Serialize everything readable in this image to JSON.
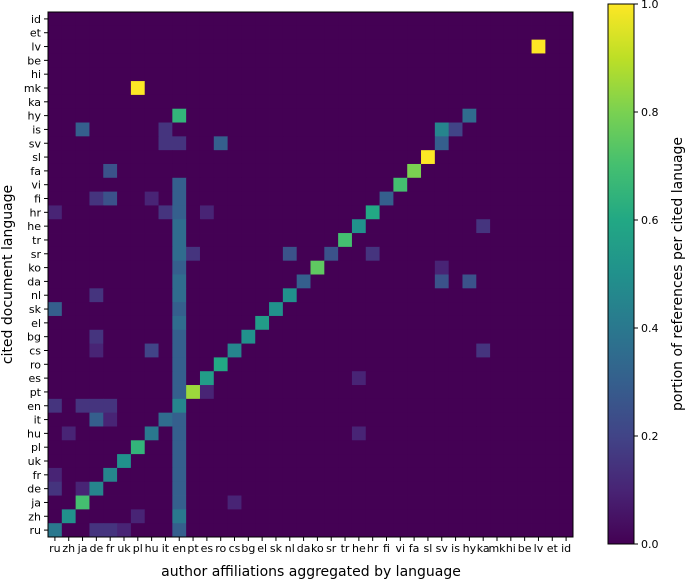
{
  "chart_data": {
    "type": "heatmap",
    "title": "",
    "xlabel": "author affiliations aggregated by language",
    "ylabel": "cited document language",
    "x_categories": [
      "ru",
      "zh",
      "ja",
      "de",
      "fr",
      "uk",
      "pl",
      "hu",
      "it",
      "en",
      "pt",
      "es",
      "ro",
      "cs",
      "bg",
      "el",
      "sk",
      "nl",
      "da",
      "ko",
      "sr",
      "tr",
      "he",
      "hr",
      "fi",
      "vi",
      "fa",
      "sl",
      "sv",
      "is",
      "hy",
      "ka",
      "mk",
      "hi",
      "be",
      "lv",
      "et",
      "id"
    ],
    "y_categories_top_to_bottom": [
      "id",
      "et",
      "lv",
      "be",
      "hi",
      "mk",
      "ka",
      "hy",
      "is",
      "sv",
      "sl",
      "fa",
      "vi",
      "fi",
      "hr",
      "he",
      "tr",
      "sr",
      "ko",
      "da",
      "nl",
      "sk",
      "el",
      "bg",
      "cs",
      "ro",
      "es",
      "pt",
      "en",
      "it",
      "hu",
      "pl",
      "uk",
      "fr",
      "de",
      "ja",
      "zh",
      "ru"
    ],
    "colorbar": {
      "label": "portion of references per cited lanuage",
      "range": [
        0.0,
        1.0
      ],
      "ticks": [
        "0.0",
        "0.2",
        "0.4",
        "0.6",
        "0.8",
        "1.0"
      ],
      "colormap": "viridis"
    },
    "base_value": 0.0,
    "cells": [
      {
        "y": "ru",
        "x": "ru",
        "v": 0.4
      },
      {
        "y": "zh",
        "x": "zh",
        "v": 0.5
      },
      {
        "y": "ja",
        "x": "ja",
        "v": 0.7
      },
      {
        "y": "de",
        "x": "de",
        "v": 0.45
      },
      {
        "y": "fr",
        "x": "fr",
        "v": 0.45
      },
      {
        "y": "uk",
        "x": "uk",
        "v": 0.5
      },
      {
        "y": "pl",
        "x": "pl",
        "v": 0.65
      },
      {
        "y": "hu",
        "x": "hu",
        "v": 0.4
      },
      {
        "y": "it",
        "x": "it",
        "v": 0.35
      },
      {
        "y": "en",
        "x": "en",
        "v": 0.45
      },
      {
        "y": "pt",
        "x": "pt",
        "v": 0.85
      },
      {
        "y": "es",
        "x": "es",
        "v": 0.55
      },
      {
        "y": "ro",
        "x": "ro",
        "v": 0.6
      },
      {
        "y": "cs",
        "x": "cs",
        "v": 0.45
      },
      {
        "y": "bg",
        "x": "bg",
        "v": 0.5
      },
      {
        "y": "el",
        "x": "el",
        "v": 0.55
      },
      {
        "y": "sk",
        "x": "sk",
        "v": 0.5
      },
      {
        "y": "nl",
        "x": "nl",
        "v": 0.5
      },
      {
        "y": "da",
        "x": "da",
        "v": 0.3
      },
      {
        "y": "ko",
        "x": "ko",
        "v": 0.75
      },
      {
        "y": "sr",
        "x": "sr",
        "v": 0.25
      },
      {
        "y": "tr",
        "x": "tr",
        "v": 0.7
      },
      {
        "y": "he",
        "x": "he",
        "v": 0.5
      },
      {
        "y": "hr",
        "x": "hr",
        "v": 0.6
      },
      {
        "y": "fi",
        "x": "fi",
        "v": 0.3
      },
      {
        "y": "vi",
        "x": "vi",
        "v": 0.7
      },
      {
        "y": "fa",
        "x": "fa",
        "v": 0.8
      },
      {
        "y": "sl",
        "x": "sl",
        "v": 1.0
      },
      {
        "y": "sv",
        "x": "sv",
        "v": 0.3
      },
      {
        "y": "is",
        "x": "sv",
        "v": 0.45
      },
      {
        "y": "hy",
        "x": "en",
        "v": 0.65
      },
      {
        "y": "hy",
        "x": "hy",
        "v": 0.35
      },
      {
        "y": "mk",
        "x": "pl",
        "v": 1.0
      },
      {
        "y": "lv",
        "x": "lv",
        "v": 1.0
      },
      {
        "y": "is",
        "x": "ja",
        "v": 0.3
      },
      {
        "y": "is",
        "x": "is",
        "v": 0.2
      },
      {
        "y": "is",
        "x": "it",
        "v": 0.15
      },
      {
        "y": "sv",
        "x": "it",
        "v": 0.15
      },
      {
        "y": "sv",
        "x": "en",
        "v": 0.15
      },
      {
        "y": "sv",
        "x": "ro",
        "v": 0.3
      },
      {
        "y": "fa",
        "x": "fr",
        "v": 0.25
      },
      {
        "y": "fi",
        "x": "fr",
        "v": 0.25
      },
      {
        "y": "fi",
        "x": "de",
        "v": 0.15
      },
      {
        "y": "hr",
        "x": "it",
        "v": 0.15
      },
      {
        "y": "hr",
        "x": "ru",
        "v": 0.1
      },
      {
        "y": "hr",
        "x": "es",
        "v": 0.1
      },
      {
        "y": "sr",
        "x": "pt",
        "v": 0.15
      },
      {
        "y": "sr",
        "x": "nl",
        "v": 0.25
      },
      {
        "y": "sr",
        "x": "hr",
        "v": 0.15
      },
      {
        "y": "ko",
        "x": "sv",
        "v": 0.1
      },
      {
        "y": "da",
        "x": "sv",
        "v": 0.25
      },
      {
        "y": "da",
        "x": "hy",
        "v": 0.25
      },
      {
        "y": "sk",
        "x": "ru",
        "v": 0.3
      },
      {
        "y": "cs",
        "x": "hu",
        "v": 0.2
      },
      {
        "y": "cs",
        "x": "ka",
        "v": 0.15
      },
      {
        "y": "he",
        "x": "ka",
        "v": 0.15
      },
      {
        "y": "es",
        "x": "he",
        "v": 0.1
      },
      {
        "y": "en",
        "x": "ru",
        "v": 0.15
      },
      {
        "y": "en",
        "x": "ja",
        "v": 0.15
      },
      {
        "y": "en",
        "x": "de",
        "v": 0.15
      },
      {
        "y": "en",
        "x": "fr",
        "v": 0.15
      },
      {
        "y": "it",
        "x": "de",
        "v": 0.3
      },
      {
        "y": "it",
        "x": "fr",
        "v": 0.1
      },
      {
        "y": "hu",
        "x": "zh",
        "v": 0.1
      },
      {
        "y": "hu",
        "x": "he",
        "v": 0.1
      },
      {
        "y": "fr",
        "x": "ru",
        "v": 0.1
      },
      {
        "y": "de",
        "x": "ru",
        "v": 0.15
      },
      {
        "y": "de",
        "x": "ja",
        "v": 0.1
      },
      {
        "y": "zh",
        "x": "pl",
        "v": 0.1
      },
      {
        "y": "ru",
        "x": "de",
        "v": 0.15
      },
      {
        "y": "ru",
        "x": "fr",
        "v": 0.15
      },
      {
        "y": "ru",
        "x": "uk",
        "v": 0.1
      },
      {
        "y": "ja",
        "x": "cs",
        "v": 0.1
      },
      {
        "y": "nl",
        "x": "de",
        "v": 0.15
      },
      {
        "y": "bg",
        "x": "de",
        "v": 0.15
      },
      {
        "y": "cs",
        "x": "de",
        "v": 0.1
      },
      {
        "y": "pt",
        "x": "es",
        "v": 0.1
      },
      {
        "y": "fi",
        "x": "hu",
        "v": 0.1
      }
    ],
    "en_column_values": [
      {
        "y": "id",
        "v": 0.0
      },
      {
        "y": "et",
        "v": 0.0
      },
      {
        "y": "lv",
        "v": 0.0
      },
      {
        "y": "be",
        "v": 0.0
      },
      {
        "y": "hi",
        "v": 0.0
      },
      {
        "y": "mk",
        "v": 0.0
      },
      {
        "y": "ka",
        "v": 0.0
      },
      {
        "y": "vi",
        "v": 0.3
      },
      {
        "y": "fi",
        "v": 0.3
      },
      {
        "y": "hr",
        "v": 0.3
      },
      {
        "y": "he",
        "v": 0.35
      },
      {
        "y": "tr",
        "v": 0.35
      },
      {
        "y": "sr",
        "v": 0.35
      },
      {
        "y": "ko",
        "v": 0.3
      },
      {
        "y": "da",
        "v": 0.35
      },
      {
        "y": "nl",
        "v": 0.35
      },
      {
        "y": "sk",
        "v": 0.3
      },
      {
        "y": "el",
        "v": 0.35
      },
      {
        "y": "bg",
        "v": 0.3
      },
      {
        "y": "cs",
        "v": 0.3
      },
      {
        "y": "ro",
        "v": 0.3
      },
      {
        "y": "es",
        "v": 0.3
      },
      {
        "y": "pt",
        "v": 0.3
      },
      {
        "y": "it",
        "v": 0.3
      },
      {
        "y": "hu",
        "v": 0.3
      },
      {
        "y": "pl",
        "v": 0.3
      },
      {
        "y": "uk",
        "v": 0.3
      },
      {
        "y": "fr",
        "v": 0.3
      },
      {
        "y": "de",
        "v": 0.3
      },
      {
        "y": "ja",
        "v": 0.3
      },
      {
        "y": "zh",
        "v": 0.4
      },
      {
        "y": "ru",
        "v": 0.3
      }
    ]
  }
}
